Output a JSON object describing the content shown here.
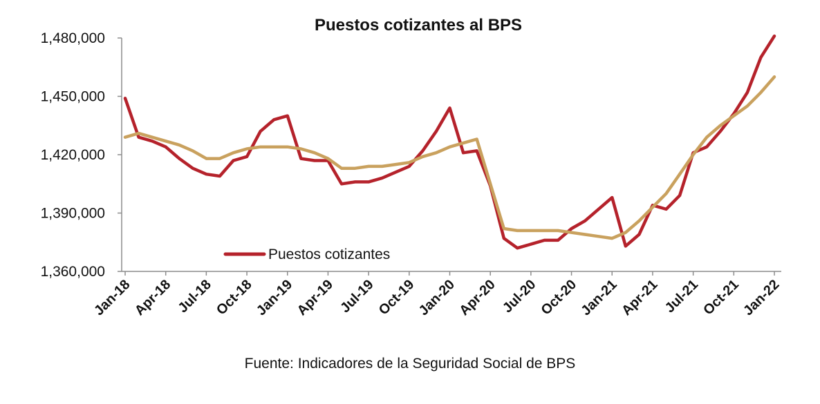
{
  "chart_data": {
    "type": "line",
    "title": "Puestos cotizantes al BPS",
    "xlabel": "",
    "ylabel": "",
    "ylim": [
      1360000,
      1480000
    ],
    "yticks": [
      1360000,
      1390000,
      1420000,
      1450000,
      1480000
    ],
    "ytick_labels": [
      "1,360,000",
      "1,390,000",
      "1,420,000",
      "1,450,000",
      "1,480,000"
    ],
    "x": [
      "Jan-18",
      "Feb-18",
      "Mar-18",
      "Apr-18",
      "May-18",
      "Jun-18",
      "Jul-18",
      "Aug-18",
      "Sep-18",
      "Oct-18",
      "Nov-18",
      "Dec-18",
      "Jan-19",
      "Feb-19",
      "Mar-19",
      "Apr-19",
      "May-19",
      "Jun-19",
      "Jul-19",
      "Aug-19",
      "Sep-19",
      "Oct-19",
      "Nov-19",
      "Dec-19",
      "Jan-20",
      "Feb-20",
      "Mar-20",
      "Apr-20",
      "May-20",
      "Jun-20",
      "Jul-20",
      "Aug-20",
      "Sep-20",
      "Oct-20",
      "Nov-20",
      "Dec-20",
      "Jan-21",
      "Feb-21",
      "Mar-21",
      "Apr-21",
      "May-21",
      "Jun-21",
      "Jul-21",
      "Aug-21",
      "Sep-21",
      "Oct-21",
      "Nov-21",
      "Dec-21",
      "Jan-22"
    ],
    "xtick_labels": [
      "Jan-18",
      "Apr-18",
      "Jul-18",
      "Oct-18",
      "Jan-19",
      "Apr-19",
      "Jul-19",
      "Oct-19",
      "Jan-20",
      "Apr-20",
      "Jul-20",
      "Oct-20",
      "Jan-21",
      "Apr-21",
      "Jul-21",
      "Oct-21",
      "Jan-22"
    ],
    "series": [
      {
        "name": "Puestos cotizantes",
        "color": "#b5222b",
        "values": [
          1449000,
          1429000,
          1427000,
          1424000,
          1418000,
          1413000,
          1410000,
          1409000,
          1417000,
          1419000,
          1432000,
          1438000,
          1440000,
          1418000,
          1417000,
          1417000,
          1405000,
          1406000,
          1406000,
          1408000,
          1411000,
          1414000,
          1422000,
          1432000,
          1444000,
          1421000,
          1422000,
          1404000,
          1377000,
          1372000,
          1374000,
          1376000,
          1376000,
          1382000,
          1386000,
          1392000,
          1398000,
          1373000,
          1379000,
          1394000,
          1392000,
          1399000,
          1421000,
          1424000,
          1432000,
          1441000,
          1452000,
          1470000,
          1481000
        ]
      },
      {
        "color": "#c9a15e",
        "values": [
          1429000,
          1431000,
          1429000,
          1427000,
          1425000,
          1422000,
          1418000,
          1418000,
          1421000,
          1423000,
          1424000,
          1424000,
          1424000,
          1423000,
          1421000,
          1418000,
          1413000,
          1413000,
          1414000,
          1414000,
          1415000,
          1416000,
          1419000,
          1421000,
          1424000,
          1426000,
          1428000,
          1405000,
          1382000,
          1381000,
          1381000,
          1381000,
          1381000,
          1380000,
          1379000,
          1378000,
          1377000,
          1380000,
          1386000,
          1393000,
          1400000,
          1410000,
          1420000,
          1429000,
          1435000,
          1440000,
          1445000,
          1452000,
          1460000
        ]
      }
    ],
    "grid": false,
    "legend": "bottom-left (inside plot)",
    "source": "Fuente: Indicadores de la Seguridad Social de BPS"
  }
}
